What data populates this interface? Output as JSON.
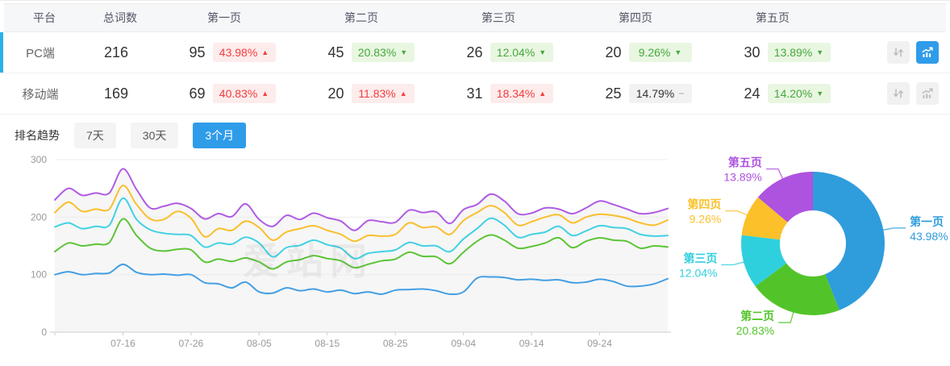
{
  "table": {
    "columns": [
      "平台",
      "总词数",
      "第一页",
      "第二页",
      "第三页",
      "第四页",
      "第五页"
    ],
    "rows": [
      {
        "platform": "PC端",
        "total": "216",
        "selected": true,
        "pages": [
          {
            "count": "95",
            "pct": "43.98%",
            "dir": "up"
          },
          {
            "count": "45",
            "pct": "20.83%",
            "dir": "down"
          },
          {
            "count": "26",
            "pct": "12.04%",
            "dir": "down"
          },
          {
            "count": "20",
            "pct": "9.26%",
            "dir": "down"
          },
          {
            "count": "30",
            "pct": "13.89%",
            "dir": "down"
          }
        ]
      },
      {
        "platform": "移动端",
        "total": "169",
        "selected": false,
        "pages": [
          {
            "count": "69",
            "pct": "40.83%",
            "dir": "up"
          },
          {
            "count": "20",
            "pct": "11.83%",
            "dir": "up"
          },
          {
            "count": "31",
            "pct": "18.34%",
            "dir": "up"
          },
          {
            "count": "25",
            "pct": "14.79%",
            "dir": "flat"
          },
          {
            "count": "24",
            "pct": "14.20%",
            "dir": "down"
          }
        ]
      }
    ]
  },
  "icons": {
    "up": "▲",
    "down": "▼",
    "flat": "−"
  },
  "trend_controls": {
    "title": "排名趋势",
    "ranges": [
      "7天",
      "30天",
      "3个月"
    ],
    "active_index": 2
  },
  "watermark": "爱站网",
  "colors": {
    "accent": "#2f9cea",
    "accent_light": "#29b2ea",
    "badge_up_bg": "#fdecec",
    "badge_up_text": "#f23d3d",
    "badge_down_bg": "#e9f6e1",
    "badge_down_text": "#45a83e",
    "badge_flat_bg": "#f2f2f2",
    "badge_flat_text": "#333333"
  },
  "chart_data": [
    {
      "type": "line",
      "title": "排名趋势（3个月）",
      "x_axis": {
        "start": "07-06",
        "step_days": 2,
        "tick_indices": [
          5,
          10,
          15,
          20,
          25,
          30,
          35,
          40
        ],
        "tick_labels": [
          "07-16",
          "07-26",
          "08-05",
          "08-15",
          "08-25",
          "09-04",
          "09-14",
          "09-24"
        ]
      },
      "ylim": [
        0,
        300
      ],
      "yticks": [
        0,
        100,
        200,
        300
      ],
      "grid": true,
      "legend": "none",
      "area_fill": "#f6f6f6",
      "series": [
        {
          "id": "page1",
          "name": "第一页",
          "color": "#449fe3",
          "values": [
            100,
            105,
            100,
            102,
            103,
            118,
            104,
            100,
            101,
            99,
            100,
            86,
            84,
            77,
            87,
            70,
            68,
            77,
            72,
            75,
            70,
            73,
            67,
            70,
            66,
            73,
            74,
            75,
            72,
            66,
            70,
            94,
            96,
            95,
            91,
            92,
            90,
            91,
            86,
            87,
            92,
            88,
            80,
            80,
            84,
            93
          ]
        },
        {
          "id": "page2",
          "name": "第二页",
          "color": "#5cc436",
          "values": [
            140,
            155,
            150,
            153,
            156,
            197,
            168,
            146,
            141,
            144,
            143,
            122,
            127,
            123,
            129,
            122,
            110,
            122,
            126,
            133,
            128,
            124,
            112,
            118,
            124,
            127,
            139,
            132,
            131,
            119,
            139,
            158,
            169,
            160,
            146,
            149,
            155,
            164,
            147,
            158,
            164,
            160,
            158,
            146,
            150,
            148
          ]
        },
        {
          "id": "page3",
          "name": "第三页",
          "color": "#42d1e4",
          "values": [
            183,
            190,
            180,
            184,
            186,
            233,
            196,
            178,
            172,
            170,
            168,
            148,
            155,
            153,
            165,
            155,
            131,
            147,
            151,
            160,
            152,
            146,
            128,
            137,
            140,
            143,
            156,
            150,
            150,
            140,
            162,
            180,
            198,
            186,
            165,
            170,
            174,
            184,
            168,
            176,
            185,
            182,
            180,
            170,
            167,
            168
          ]
        },
        {
          "id": "page4",
          "name": "第四页",
          "color": "#f9bf2d",
          "values": [
            208,
            226,
            210,
            214,
            214,
            255,
            222,
            197,
            196,
            210,
            198,
            166,
            180,
            177,
            193,
            182,
            160,
            174,
            180,
            185,
            177,
            170,
            158,
            168,
            167,
            170,
            190,
            182,
            183,
            170,
            194,
            208,
            220,
            208,
            186,
            192,
            200,
            204,
            190,
            200,
            205,
            203,
            198,
            190,
            186,
            195
          ]
        },
        {
          "id": "page5",
          "name": "第五页",
          "color": "#b05ce3",
          "values": [
            230,
            250,
            238,
            242,
            242,
            284,
            248,
            216,
            219,
            224,
            215,
            197,
            206,
            201,
            223,
            196,
            184,
            203,
            196,
            207,
            199,
            193,
            177,
            194,
            192,
            191,
            212,
            208,
            209,
            189,
            213,
            222,
            240,
            228,
            206,
            207,
            216,
            214,
            206,
            216,
            228,
            222,
            214,
            206,
            208,
            215
          ]
        }
      ]
    },
    {
      "type": "pie",
      "donut": true,
      "legend": "none",
      "slices": [
        {
          "label": "第一页",
          "value": 43.98,
          "pct_label": "43.98%",
          "color": "#2f9cdc"
        },
        {
          "label": "第二页",
          "value": 20.83,
          "pct_label": "20.83%",
          "color": "#52c42a"
        },
        {
          "label": "第三页",
          "value": 12.04,
          "pct_label": "12.04%",
          "color": "#2fd0de"
        },
        {
          "label": "第四页",
          "value": 9.26,
          "pct_label": "9.26%",
          "color": "#fbc02a"
        },
        {
          "label": "第五页",
          "value": 13.89,
          "pct_label": "13.89%",
          "color": "#ae52e0"
        }
      ]
    }
  ]
}
